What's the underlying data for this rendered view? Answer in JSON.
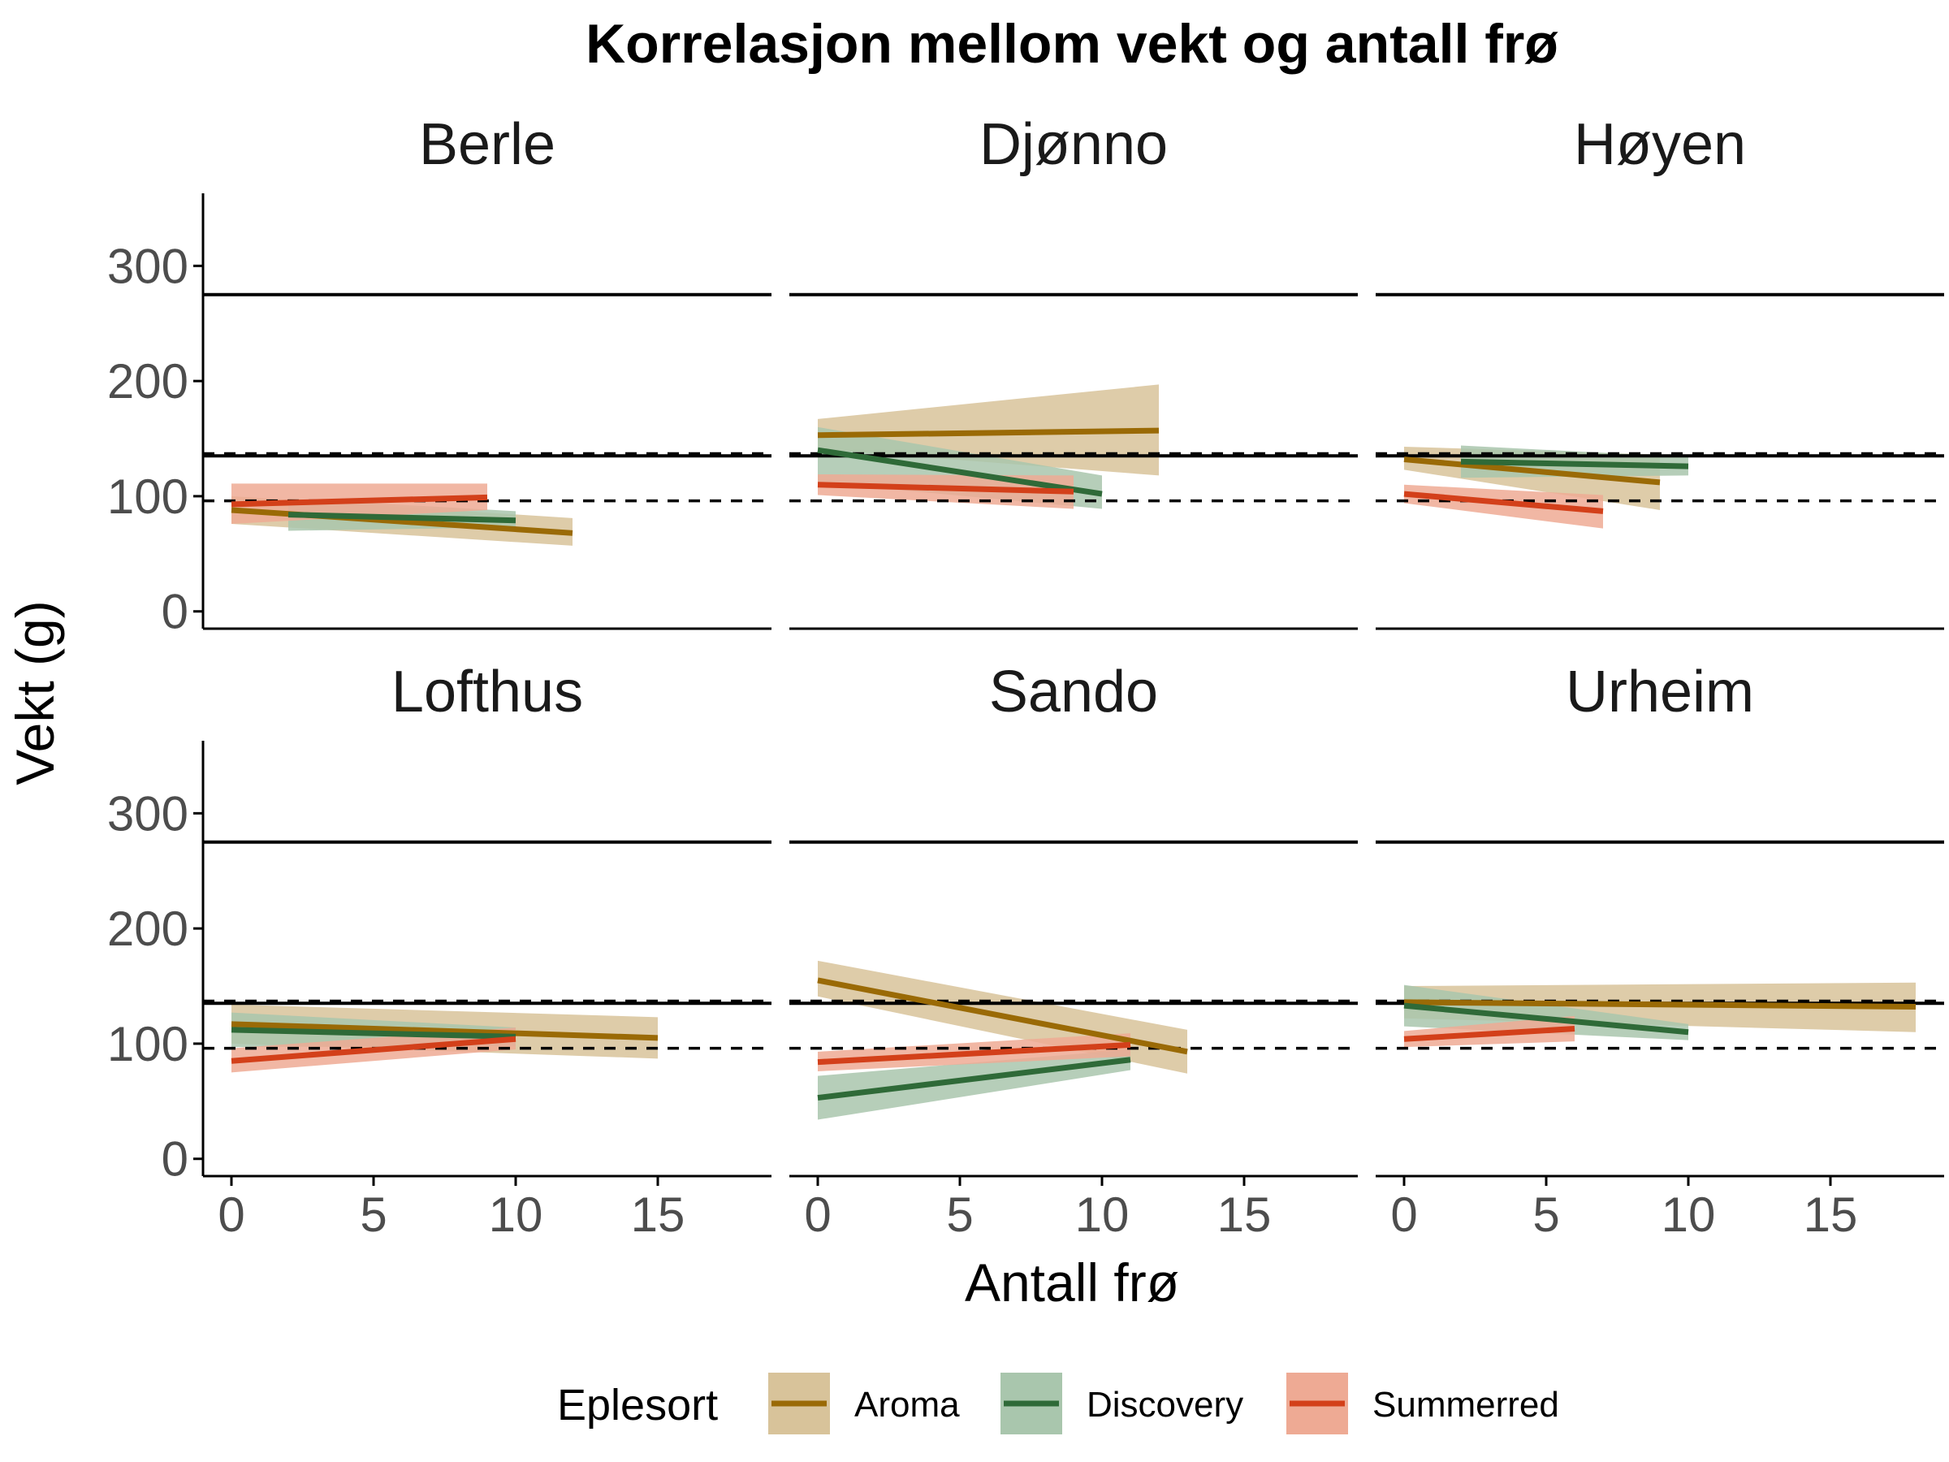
{
  "chart_data": {
    "type": "line",
    "title": "Korrelasjon mellom vekt og antall frø",
    "xlabel": "Antall frø",
    "ylabel": "Vekt (g)",
    "xlim": [
      -1,
      19
    ],
    "ylim": [
      -15,
      363
    ],
    "x_ticks": [
      "0",
      "5",
      "10",
      "15"
    ],
    "x_tick_values": [
      0,
      5,
      10,
      15
    ],
    "y_ticks": [
      "0",
      "100",
      "200",
      "300"
    ],
    "y_tick_values": [
      0,
      100,
      200,
      300
    ],
    "reference_lines": {
      "solid": [
        275,
        135
      ],
      "dashed": [
        137,
        96
      ]
    },
    "legend": {
      "title": "Eplesort",
      "position": "bottom",
      "items": [
        "Aroma",
        "Discovery",
        "Summerred"
      ]
    },
    "colors": {
      "Aroma": {
        "line": "#9a6a06",
        "band": "#d8c39a"
      },
      "Discovery": {
        "line": "#2f6a38",
        "band": "#a9c6ad"
      },
      "Summerred": {
        "line": "#d3401a",
        "band": "#eeaa94"
      }
    },
    "panels": [
      {
        "name": "Berle",
        "series": [
          {
            "name": "Aroma",
            "x": [
              0,
              12
            ],
            "y": [
              88,
              68
            ],
            "lower": [
              76,
              57
            ],
            "upper": [
              100,
              81
            ]
          },
          {
            "name": "Discovery",
            "x": [
              2,
              10
            ],
            "y": [
              84,
              79
            ],
            "lower": [
              70,
              73
            ],
            "upper": [
              98,
              87
            ]
          },
          {
            "name": "Summerred",
            "x": [
              0,
              9
            ],
            "y": [
              93,
              99
            ],
            "lower": [
              76,
              88
            ],
            "upper": [
              111,
              111
            ]
          }
        ]
      },
      {
        "name": "Djønno",
        "series": [
          {
            "name": "Aroma",
            "x": [
              0,
              12
            ],
            "y": [
              153,
              157
            ],
            "lower": [
              141,
              118
            ],
            "upper": [
              167,
              197
            ]
          },
          {
            "name": "Discovery",
            "x": [
              0,
              10
            ],
            "y": [
              140,
              102
            ],
            "lower": [
              112,
              89
            ],
            "upper": [
              160,
              118
            ]
          },
          {
            "name": "Summerred",
            "x": [
              0,
              9
            ],
            "y": [
              110,
              104
            ],
            "lower": [
              101,
              89
            ],
            "upper": [
              119,
              118
            ]
          }
        ]
      },
      {
        "name": "Høyen",
        "series": [
          {
            "name": "Aroma",
            "x": [
              0,
              9
            ],
            "y": [
              132,
              112
            ],
            "lower": [
              123,
              88
            ],
            "upper": [
              143,
              136
            ]
          },
          {
            "name": "Discovery",
            "x": [
              2,
              10
            ],
            "y": [
              130,
              126
            ],
            "lower": [
              116,
              118
            ],
            "upper": [
              144,
              134
            ]
          },
          {
            "name": "Summerred",
            "x": [
              0,
              7
            ],
            "y": [
              102,
              87
            ],
            "lower": [
              94,
              72
            ],
            "upper": [
              110,
              101
            ]
          }
        ]
      },
      {
        "name": "Lofthus",
        "series": [
          {
            "name": "Aroma",
            "x": [
              0,
              15
            ],
            "y": [
              117,
              105
            ],
            "lower": [
              100,
              87
            ],
            "upper": [
              134,
              123
            ]
          },
          {
            "name": "Discovery",
            "x": [
              0,
              10
            ],
            "y": [
              112,
              106
            ],
            "lower": [
              97,
              98
            ],
            "upper": [
              127,
              114
            ]
          },
          {
            "name": "Summerred",
            "x": [
              0,
              10
            ],
            "y": [
              85,
              104
            ],
            "lower": [
              75,
              95
            ],
            "upper": [
              96,
              114
            ]
          }
        ]
      },
      {
        "name": "Sando",
        "series": [
          {
            "name": "Aroma",
            "x": [
              0,
              13
            ],
            "y": [
              155,
              93
            ],
            "lower": [
              141,
              74
            ],
            "upper": [
              172,
              112
            ]
          },
          {
            "name": "Discovery",
            "x": [
              0,
              11
            ],
            "y": [
              53,
              86
            ],
            "lower": [
              34,
              77
            ],
            "upper": [
              72,
              95
            ]
          },
          {
            "name": "Summerred",
            "x": [
              0,
              11
            ],
            "y": [
              84,
              99
            ],
            "lower": [
              76,
              89
            ],
            "upper": [
              93,
              109
            ]
          }
        ]
      },
      {
        "name": "Urheim",
        "series": [
          {
            "name": "Aroma",
            "x": [
              0,
              18
            ],
            "y": [
              136,
              132
            ],
            "lower": [
              122,
              110
            ],
            "upper": [
              150,
              153
            ]
          },
          {
            "name": "Discovery",
            "x": [
              0,
              10
            ],
            "y": [
              133,
              110
            ],
            "lower": [
              115,
              103
            ],
            "upper": [
              151,
              117
            ]
          },
          {
            "name": "Summerred",
            "x": [
              0,
              6
            ],
            "y": [
              104,
              113
            ],
            "lower": [
              97,
              102
            ],
            "upper": [
              111,
              124
            ]
          }
        ]
      }
    ]
  }
}
